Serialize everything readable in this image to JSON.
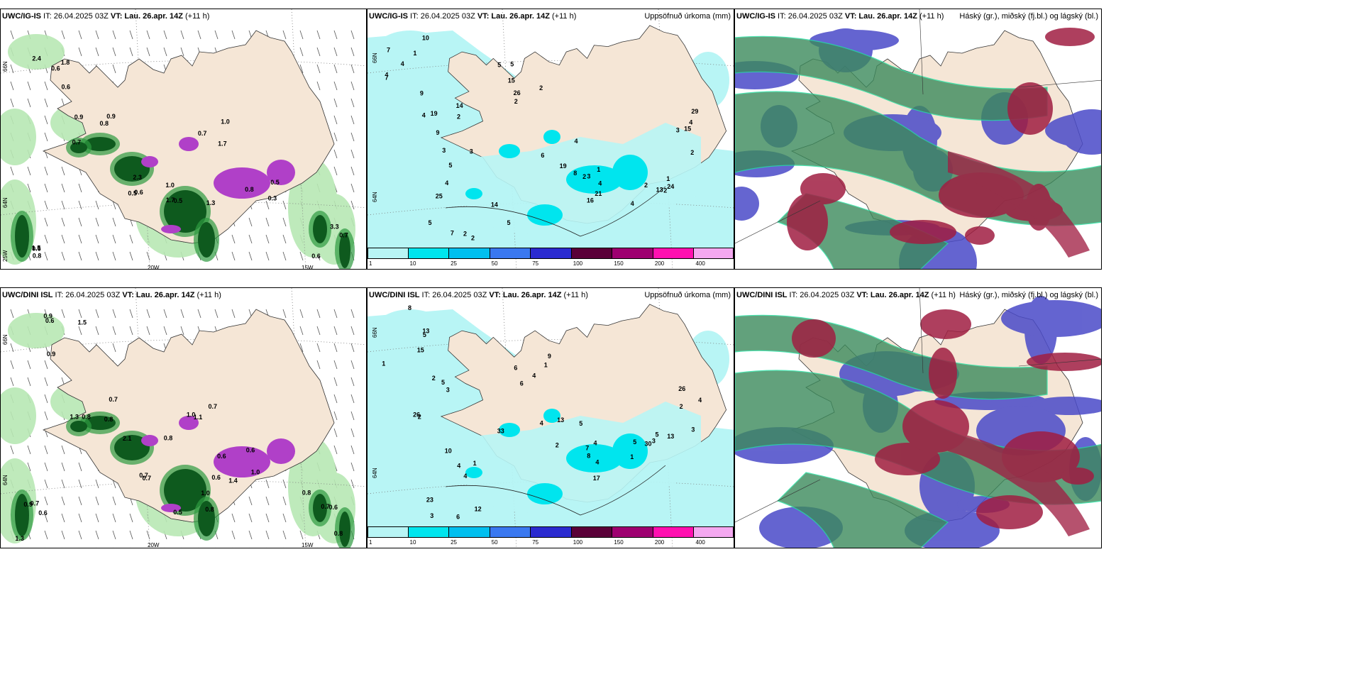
{
  "rows": [
    {
      "model": "UWC/IG-IS",
      "run": " IT: 26.04.2025 03Z ",
      "vt_label": "VT:",
      "vt_value": " Lau. 26.apr. 14Z ",
      "lead": "(+11 h)"
    },
    {
      "model": "UWC/DINI ISL",
      "run": " IT: 26.04.2025 03Z ",
      "vt_label": "VT:",
      "vt_value": " Lau. 26.apr. 14Z ",
      "lead": "(+11 h)"
    }
  ],
  "precip_title": "Uppsöfnuð úrkoma (mm)",
  "cloud_title": "Háský (gr.), miðský (fj.bl.) og lágský (bl.)",
  "grid_labels": {
    "lat66": "66N",
    "lat64": "64N",
    "lon25": "25W",
    "lon20": "20W",
    "lon15": "15W"
  },
  "colorbar": {
    "ticks": [
      "1",
      "10",
      "25",
      "50",
      "75",
      "100",
      "150",
      "200",
      "400"
    ],
    "colors": [
      "#b8f5f5",
      "#00e5ee",
      "#00bfef",
      "#3a78f0",
      "#2a2ad0",
      "#5a0038",
      "#9e0070",
      "#ff10b0",
      "#f4a8f0"
    ]
  },
  "colors": {
    "land": "#f5e6d6",
    "precip_light": "#b8f5f5",
    "precip_mid": "#00e5ee",
    "snow_dark": "#0e5a1e",
    "snow_green": "#2e9a40",
    "snow_light": "#b8e8b4",
    "magenta": "#b040c8",
    "high_cloud": "#3c8a5c",
    "mid_cloud": "#a01e42",
    "low_cloud": "#4a4ac8"
  },
  "snow_labels_top": [
    "0.6",
    "0.9",
    "0.6",
    "0.5",
    "0.5",
    "0.8",
    "0.7",
    "0.7",
    "0.6",
    "0.7",
    "0.5",
    "1.7",
    "0.8",
    "1.5",
    "3.3",
    "1.0",
    "2.4",
    "0.9",
    "1.0",
    "1.3",
    "0.3",
    "0.6",
    "0.6",
    "1.7",
    "1.8",
    "0.8",
    "2.3"
  ],
  "snow_labels_bottom": [
    "0.6",
    "0.8",
    "0.7",
    "0.5",
    "0.6",
    "0.7",
    "0.6",
    "1.1",
    "1.5",
    "1.3",
    "0.7",
    "0.6",
    "0.6",
    "0.9",
    "0.8",
    "0.7",
    "0.9",
    "0.7",
    "2.1",
    "0.8",
    "1.0",
    "0.6",
    "0.8",
    "1.0",
    "0.9",
    "0.8",
    "0.8",
    "1.0",
    "1.4",
    "1.3",
    "0.7"
  ],
  "precip_labels_top": [
    "4",
    "4",
    "3",
    "2",
    "3",
    "1",
    "2",
    "3",
    "7",
    "1",
    "2",
    "3",
    "5",
    "2",
    "4",
    "13",
    "15",
    "5",
    "10",
    "19",
    "14",
    "15",
    "8",
    "21",
    "2",
    "4",
    "2",
    "4",
    "14",
    "25",
    "26",
    "19",
    "16",
    "24",
    "29",
    "5",
    "7",
    "9",
    "4",
    "2",
    "6",
    "4",
    "1",
    "2",
    "2",
    "7",
    "9",
    "5",
    "5",
    "4"
  ],
  "precip_labels_bottom": [
    "5",
    "5",
    "4",
    "4",
    "2",
    "1",
    "13",
    "2",
    "3",
    "1",
    "2",
    "4",
    "6",
    "8",
    "7",
    "5",
    "4",
    "12",
    "13",
    "3",
    "10",
    "9",
    "13",
    "17",
    "30",
    "26",
    "23",
    "15",
    "26",
    "33",
    "6",
    "5",
    "4",
    "3",
    "3",
    "6",
    "8",
    "2",
    "1",
    "1",
    "4",
    "4",
    "5"
  ]
}
